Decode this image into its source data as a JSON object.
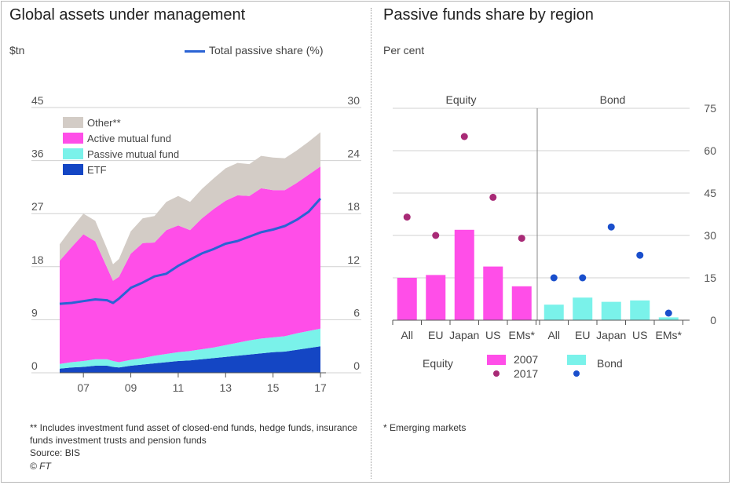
{
  "left_panel": {
    "title": "Global assets under management",
    "unit_label": "$tn",
    "line_legend": "Total passive share (%)",
    "footnote": "** Includes investment fund asset of closed-end funds, hedge funds, insurance funds investment trusts and pension funds",
    "source": "Source: BIS",
    "credit": "© FT"
  },
  "right_panel": {
    "title": "Passive funds share by region",
    "unit_label": "Per cent",
    "footnote": "* Emerging markets"
  },
  "colors": {
    "other": "#d3ccc6",
    "active": "#ff4ee8",
    "passive": "#7af2ea",
    "etf": "#1446c4",
    "line": "#2a63d4",
    "dot2017_equity": "#a82a76",
    "dot2017_bond": "#1a4fcc"
  },
  "chart_data": [
    {
      "type": "area",
      "title": "Global assets under management",
      "ylabel": "$tn",
      "y2label": "Total passive share (%)",
      "ylim": [
        0,
        45
      ],
      "y2lim": [
        0,
        30
      ],
      "yticks": [
        "0",
        "9",
        "18",
        "27",
        "36",
        "45"
      ],
      "y2ticks": [
        "0",
        "6",
        "12",
        "18",
        "24",
        "30"
      ],
      "xlim": [
        2006.0,
        2017.0
      ],
      "xticks": [
        {
          "value": 2007,
          "label": "07"
        },
        {
          "value": 2009,
          "label": "09"
        },
        {
          "value": 2011,
          "label": "11"
        },
        {
          "value": 2013,
          "label": "13"
        },
        {
          "value": 2015,
          "label": "15"
        },
        {
          "value": 2017,
          "label": "17"
        }
      ],
      "legend": [
        "Other**",
        "Active mutual fund",
        "Passive mutual fund",
        "ETF"
      ],
      "x": [
        2006.0,
        2006.5,
        2007.0,
        2007.5,
        2008.0,
        2008.25,
        2008.5,
        2009.0,
        2009.5,
        2010.0,
        2010.5,
        2011.0,
        2011.5,
        2012.0,
        2012.5,
        2013.0,
        2013.5,
        2014.0,
        2014.5,
        2015.0,
        2015.5,
        2016.0,
        2016.5,
        2017.0
      ],
      "series": [
        {
          "name": "ETF",
          "values": [
            0.7,
            0.9,
            1.0,
            1.2,
            1.2,
            1.0,
            0.9,
            1.2,
            1.4,
            1.6,
            1.8,
            2.0,
            2.1,
            2.3,
            2.5,
            2.7,
            2.9,
            3.1,
            3.3,
            3.5,
            3.6,
            3.9,
            4.2,
            4.5
          ]
        },
        {
          "name": "Passive mutual fund",
          "values": [
            0.8,
            0.9,
            1.0,
            1.1,
            1.1,
            1.0,
            0.9,
            1.0,
            1.1,
            1.3,
            1.4,
            1.5,
            1.6,
            1.7,
            1.8,
            2.0,
            2.2,
            2.4,
            2.5,
            2.5,
            2.6,
            2.8,
            2.9,
            3.0
          ]
        },
        {
          "name": "Active mutual fund",
          "values": [
            17.5,
            19.5,
            21.5,
            20.0,
            15.5,
            13.6,
            14.5,
            18.0,
            19.5,
            19.2,
            21.0,
            21.5,
            20.5,
            22.2,
            23.5,
            24.5,
            25.0,
            24.5,
            25.5,
            25.0,
            24.8,
            25.5,
            26.5,
            27.5
          ]
        },
        {
          "name": "Other**",
          "values": [
            2.8,
            3.2,
            3.5,
            3.5,
            3.2,
            2.8,
            3.0,
            3.8,
            4.2,
            4.5,
            4.8,
            5.0,
            4.8,
            5.0,
            5.2,
            5.5,
            5.5,
            5.4,
            5.5,
            5.5,
            5.4,
            5.5,
            5.6,
            5.8
          ]
        }
      ],
      "line": {
        "name": "Total passive share (%)",
        "values": [
          7.8,
          7.9,
          8.1,
          8.3,
          8.2,
          7.9,
          8.4,
          9.6,
          10.2,
          10.9,
          11.2,
          12.1,
          12.8,
          13.5,
          14.0,
          14.6,
          14.9,
          15.4,
          15.9,
          16.2,
          16.6,
          17.3,
          18.2,
          19.7
        ]
      }
    },
    {
      "type": "bar",
      "title": "Passive funds share by region",
      "ylabel": "Per cent",
      "ylim": [
        0,
        75
      ],
      "yticks": [
        "0",
        "15",
        "30",
        "45",
        "60",
        "75"
      ],
      "groups": [
        "Equity",
        "Bond"
      ],
      "categories": [
        "All",
        "EU",
        "Japan",
        "US",
        "EMs*"
      ],
      "legend": {
        "row_label_equity": "Equity",
        "row_label_bond": "Bond",
        "label_2007": "2007",
        "label_2017": "2017"
      },
      "series": [
        {
          "name": "2007",
          "group": "Equity",
          "values": [
            15,
            16,
            32,
            19,
            12
          ]
        },
        {
          "name": "2017",
          "group": "Equity",
          "values": [
            36.5,
            30,
            65,
            43.5,
            29
          ]
        },
        {
          "name": "2007",
          "group": "Bond",
          "values": [
            5.5,
            8,
            6.5,
            7,
            1
          ]
        },
        {
          "name": "2017",
          "group": "Bond",
          "values": [
            15,
            15,
            33,
            23,
            2.5
          ]
        }
      ]
    }
  ]
}
